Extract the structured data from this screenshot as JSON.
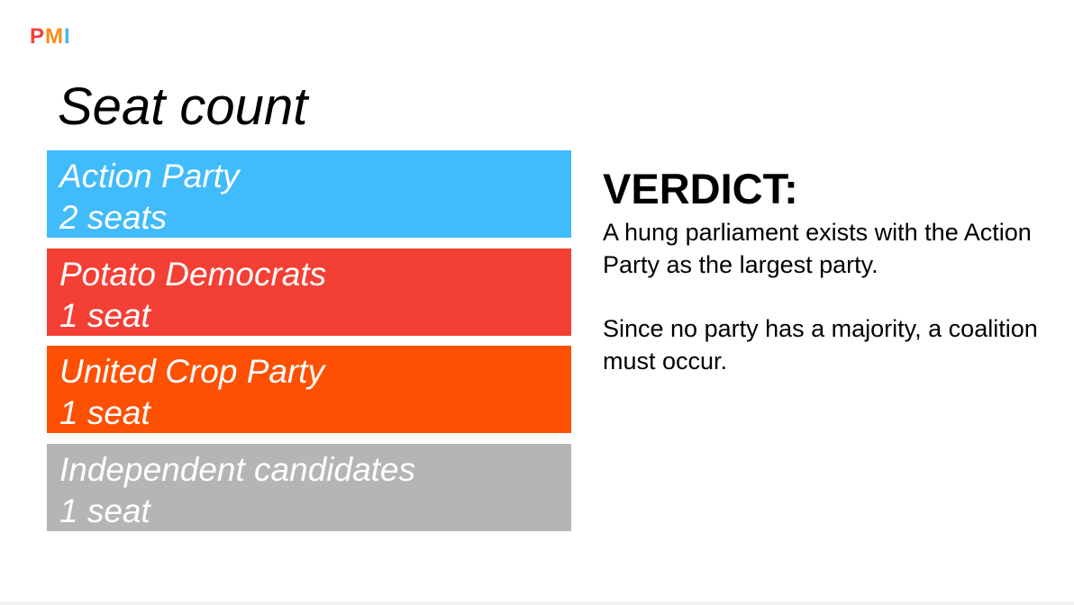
{
  "logo": {
    "letters": [
      {
        "char": "P",
        "color": "#f43f3a"
      },
      {
        "char": "M",
        "color": "#fb8c1a"
      },
      {
        "char": "I",
        "color": "#3dbbf7"
      }
    ]
  },
  "title": "Seat count",
  "parties": [
    {
      "name": "Action Party",
      "seats": "2 seats",
      "color": "#40bbfc"
    },
    {
      "name": "Potato Democrats",
      "seats": "1 seat",
      "color": "#f43f35"
    },
    {
      "name": "United Crop Party",
      "seats": "1 seat",
      "color": "#fd5002"
    },
    {
      "name": "Independent candidates",
      "seats": "1 seat",
      "color": "#b5b5b5"
    }
  ],
  "verdict": {
    "heading": "VERDICT:",
    "paragraph1": "A hung parliament exists with the Action Party as the largest party.",
    "paragraph2": "Since no party has a majority, a coalition must occur."
  }
}
